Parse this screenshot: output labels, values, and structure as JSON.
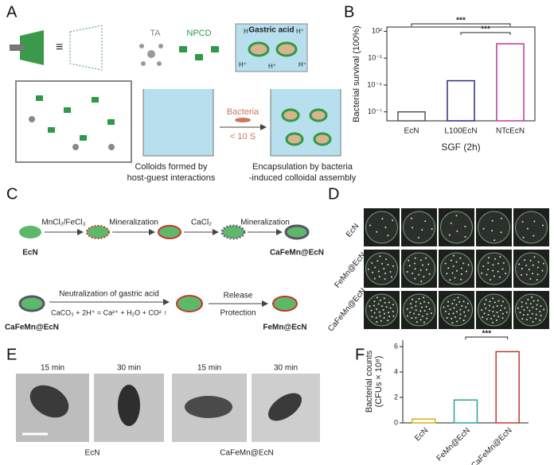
{
  "panel_labels": [
    "A",
    "B",
    "C",
    "D",
    "E",
    "F"
  ],
  "panel_a": {
    "ta": "TA",
    "npcd": "NPCD",
    "gastric_acid": "Gastric acid",
    "h_plus": [
      "H⁺",
      "H⁺",
      "H⁺",
      "H⁺",
      "H⁺"
    ],
    "bacteria": "Bacteria",
    "time": "< 10 S",
    "caption_left": [
      "Colloids formed by",
      "host-guest interactions"
    ],
    "caption_right": [
      "Encapsulation by bacteria",
      "-induced colloidal assembly"
    ]
  },
  "panel_c": {
    "ecn": "EcN",
    "step1": "MnCl₂/FeCl₃",
    "step2": "Mineralization",
    "step3": "CaCl₂",
    "step4": "Mineralization",
    "product": "CaFeMn@EcN",
    "start": "CaFeMn@EcN",
    "neutralization": "Neutralization of gastric acid",
    "equation": "CaCO₃ + 2H⁺ = Ca²⁺ + H₂O + CO² ↑",
    "release": "Release",
    "protection": "Protection",
    "end": "FeMn@EcN"
  },
  "panel_d": {
    "rows": [
      "EcN",
      "FeMn@EcN",
      "CaFeMn@EcN"
    ]
  },
  "panel_e": {
    "times": [
      "15 min",
      "30 min",
      "15 min",
      "30 min"
    ],
    "groups": [
      "EcN",
      "CaFeMn@EcN"
    ]
  },
  "chart_data": [
    {
      "type": "bar",
      "ylabel": [
        "Bacterial survival (100%)"
      ],
      "xlabel": "SGF (2h)",
      "categories": [
        "EcN",
        "L100EcN",
        "NTcEcN"
      ],
      "values": [
        1e-07,
        0.0003,
        4
      ],
      "colors": [
        "#555555",
        "#2a2a8a",
        "#c0369a"
      ],
      "log_scale": true,
      "ylim": [
        1e-08,
        300
      ],
      "yticks": [
        {
          "value": 1e-07,
          "label": "10⁻⁷"
        },
        {
          "value": 0.0001,
          "label": "10⁻⁴"
        },
        {
          "value": 0.1,
          "label": "10⁻¹"
        },
        {
          "value": 100,
          "label": "10²"
        }
      ],
      "annotations": [
        "***",
        "***"
      ],
      "xtick_rotation": 0
    },
    {
      "type": "bar",
      "ylabel": [
        "Bacterial counts",
        "(CFUs × 10⁸)"
      ],
      "categories": [
        "EcN",
        "FeMn@EcN",
        "CaFeMn@EcN"
      ],
      "values": [
        0.3,
        1.8,
        5.6
      ],
      "colors": [
        "#d4b21a",
        "#2aa39a",
        "#c0392b"
      ],
      "log_scale": false,
      "ylim": [
        0,
        6.5
      ],
      "yticks": [
        0,
        2,
        4,
        6
      ],
      "annotations": [
        "***"
      ],
      "xtick_rotation": -45
    }
  ]
}
